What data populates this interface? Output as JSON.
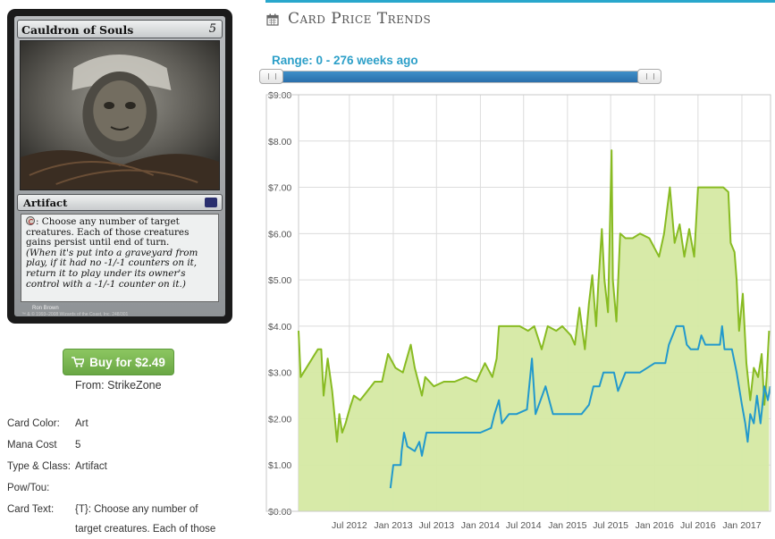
{
  "card": {
    "name": "Cauldron of Souls",
    "cost": "5",
    "type_line": "Artifact",
    "ability_text": ": Choose any number of target creatures. Each of those creatures gains persist until end of turn.",
    "reminder_text": "(When it's put into a graveyard from play, if it had no -1/-1 counters on it, return it to play under its owner's control with a -1/-1 counter on it.)",
    "artist": "Ron Brown",
    "copyright": "™ & © 1993–2008 Wizards of the Coast, Inc. 248/301"
  },
  "buy": {
    "label": "Buy for $2.49",
    "source": "From: StrikeZone",
    "icon": "shopping-cart-icon",
    "color": "#7ab854"
  },
  "attributes": [
    {
      "label": "Card Color:",
      "value": "Art"
    },
    {
      "label": "Mana Cost",
      "value": "5"
    },
    {
      "label": "Type & Class:",
      "value": "Artifact"
    },
    {
      "label": "Pow/Tou:",
      "value": ""
    },
    {
      "label": "Card Text:",
      "value": "{T}: Choose any number of"
    },
    {
      "label": "",
      "value": "target creatures. Each of those"
    }
  ],
  "section": {
    "title": "Card Price Trends",
    "icon": "calendar-icon",
    "accent": "#29a7cc"
  },
  "range": {
    "label": "Range: 0 - 276 weeks ago",
    "min": 0,
    "max": 276
  },
  "chart_data": {
    "type": "line",
    "title": "",
    "xlabel": "",
    "ylabel": "",
    "ylim": [
      0,
      9
    ],
    "grid": true,
    "y_ticks": [
      "$0.00",
      "$1.00",
      "$2.00",
      "$3.00",
      "$4.00",
      "$5.00",
      "$6.00",
      "$7.00",
      "$8.00",
      "$9.00"
    ],
    "x_ticks": [
      "Jul 2012",
      "Jan 2013",
      "Jul 2013",
      "Jan 2014",
      "Jul 2014",
      "Jan 2015",
      "Jul 2015",
      "Jan 2016",
      "Jul 2016",
      "Jan 2017"
    ],
    "x_range": [
      "2011-12-01",
      "2017-05-01"
    ],
    "series": [
      {
        "color": "#88bb22",
        "fill": "#d5e9a3",
        "points": [
          [
            "2011-12-01",
            3.9
          ],
          [
            "2011-12-10",
            2.9
          ],
          [
            "2012-01-15",
            3.2
          ],
          [
            "2012-02-20",
            3.5
          ],
          [
            "2012-03-05",
            3.5
          ],
          [
            "2012-03-15",
            2.5
          ],
          [
            "2012-04-01",
            3.3
          ],
          [
            "2012-04-20",
            2.6
          ],
          [
            "2012-05-01",
            2.0
          ],
          [
            "2012-05-10",
            1.5
          ],
          [
            "2012-05-20",
            2.1
          ],
          [
            "2012-06-01",
            1.7
          ],
          [
            "2012-06-15",
            1.9
          ],
          [
            "2012-07-01",
            2.2
          ],
          [
            "2012-07-20",
            2.5
          ],
          [
            "2012-08-15",
            2.4
          ],
          [
            "2012-09-15",
            2.6
          ],
          [
            "2012-10-15",
            2.8
          ],
          [
            "2012-11-15",
            2.8
          ],
          [
            "2012-12-10",
            3.4
          ],
          [
            "2013-01-10",
            3.1
          ],
          [
            "2013-02-10",
            3.0
          ],
          [
            "2013-03-15",
            3.6
          ],
          [
            "2013-04-01",
            3.1
          ],
          [
            "2013-05-01",
            2.5
          ],
          [
            "2013-05-15",
            2.9
          ],
          [
            "2013-06-20",
            2.7
          ],
          [
            "2013-08-01",
            2.8
          ],
          [
            "2013-09-15",
            2.8
          ],
          [
            "2013-11-01",
            2.9
          ],
          [
            "2013-12-15",
            2.8
          ],
          [
            "2014-01-20",
            3.2
          ],
          [
            "2014-02-20",
            2.9
          ],
          [
            "2014-03-10",
            3.3
          ],
          [
            "2014-03-20",
            4.0
          ],
          [
            "2014-05-01",
            4.0
          ],
          [
            "2014-06-15",
            4.0
          ],
          [
            "2014-07-20",
            3.9
          ],
          [
            "2014-08-15",
            4.0
          ],
          [
            "2014-09-15",
            3.5
          ],
          [
            "2014-10-10",
            4.0
          ],
          [
            "2014-11-15",
            3.9
          ],
          [
            "2014-12-10",
            4.0
          ],
          [
            "2015-01-15",
            3.8
          ],
          [
            "2015-02-01",
            3.6
          ],
          [
            "2015-02-20",
            4.4
          ],
          [
            "2015-03-15",
            3.5
          ],
          [
            "2015-04-01",
            4.5
          ],
          [
            "2015-04-15",
            5.1
          ],
          [
            "2015-05-01",
            4.0
          ],
          [
            "2015-05-10",
            4.9
          ],
          [
            "2015-05-25",
            6.1
          ],
          [
            "2015-06-05",
            5.0
          ],
          [
            "2015-06-20",
            4.3
          ],
          [
            "2015-07-05",
            7.8
          ],
          [
            "2015-07-10",
            5.0
          ],
          [
            "2015-07-25",
            4.1
          ],
          [
            "2015-08-10",
            6.0
          ],
          [
            "2015-09-01",
            5.9
          ],
          [
            "2015-10-01",
            5.9
          ],
          [
            "2015-11-01",
            6.0
          ],
          [
            "2015-12-10",
            5.9
          ],
          [
            "2016-01-20",
            5.5
          ],
          [
            "2016-02-10",
            6.0
          ],
          [
            "2016-03-05",
            7.0
          ],
          [
            "2016-03-25",
            5.8
          ],
          [
            "2016-04-15",
            6.2
          ],
          [
            "2016-05-05",
            5.5
          ],
          [
            "2016-05-25",
            6.1
          ],
          [
            "2016-06-15",
            5.5
          ],
          [
            "2016-07-01",
            7.0
          ],
          [
            "2016-08-01",
            7.0
          ],
          [
            "2016-09-01",
            7.0
          ],
          [
            "2016-10-15",
            7.0
          ],
          [
            "2016-11-05",
            6.9
          ],
          [
            "2016-11-15",
            5.8
          ],
          [
            "2016-12-01",
            5.6
          ],
          [
            "2016-12-10",
            5.0
          ],
          [
            "2016-12-20",
            3.9
          ],
          [
            "2017-01-05",
            4.7
          ],
          [
            "2017-01-20",
            3.2
          ],
          [
            "2017-02-05",
            2.4
          ],
          [
            "2017-02-20",
            3.1
          ],
          [
            "2017-03-10",
            2.9
          ],
          [
            "2017-03-25",
            3.4
          ],
          [
            "2017-04-05",
            2.3
          ],
          [
            "2017-04-15",
            2.9
          ],
          [
            "2017-04-25",
            3.9
          ]
        ]
      },
      {
        "color": "#2299cc",
        "points": [
          [
            "2012-12-20",
            0.5
          ],
          [
            "2013-01-01",
            1.0
          ],
          [
            "2013-02-01",
            1.0
          ],
          [
            "2013-02-05",
            1.3
          ],
          [
            "2013-02-15",
            1.7
          ],
          [
            "2013-03-01",
            1.4
          ],
          [
            "2013-04-01",
            1.3
          ],
          [
            "2013-04-20",
            1.5
          ],
          [
            "2013-05-01",
            1.2
          ],
          [
            "2013-05-20",
            1.7
          ],
          [
            "2013-07-01",
            1.7
          ],
          [
            "2013-10-01",
            1.7
          ],
          [
            "2014-01-01",
            1.7
          ],
          [
            "2014-02-15",
            1.8
          ],
          [
            "2014-03-01",
            2.1
          ],
          [
            "2014-03-20",
            2.4
          ],
          [
            "2014-04-01",
            1.9
          ],
          [
            "2014-05-01",
            2.1
          ],
          [
            "2014-06-01",
            2.1
          ],
          [
            "2014-07-15",
            2.2
          ],
          [
            "2014-08-05",
            3.3
          ],
          [
            "2014-08-20",
            2.1
          ],
          [
            "2014-10-01",
            2.7
          ],
          [
            "2014-11-01",
            2.1
          ],
          [
            "2015-01-01",
            2.1
          ],
          [
            "2015-03-01",
            2.1
          ],
          [
            "2015-04-01",
            2.3
          ],
          [
            "2015-04-20",
            2.7
          ],
          [
            "2015-05-15",
            2.7
          ],
          [
            "2015-06-01",
            3.0
          ],
          [
            "2015-07-15",
            3.0
          ],
          [
            "2015-08-01",
            2.6
          ],
          [
            "2015-09-01",
            3.0
          ],
          [
            "2015-10-01",
            3.0
          ],
          [
            "2015-11-01",
            3.0
          ],
          [
            "2016-01-01",
            3.2
          ],
          [
            "2016-02-15",
            3.2
          ],
          [
            "2016-03-01",
            3.6
          ],
          [
            "2016-04-01",
            4.0
          ],
          [
            "2016-05-01",
            4.0
          ],
          [
            "2016-05-15",
            3.6
          ],
          [
            "2016-06-01",
            3.5
          ],
          [
            "2016-07-01",
            3.5
          ],
          [
            "2016-07-15",
            3.8
          ],
          [
            "2016-08-01",
            3.6
          ],
          [
            "2016-09-01",
            3.6
          ],
          [
            "2016-10-01",
            3.6
          ],
          [
            "2016-10-10",
            4.0
          ],
          [
            "2016-10-20",
            3.5
          ],
          [
            "2016-11-20",
            3.5
          ],
          [
            "2016-12-10",
            3.0
          ],
          [
            "2017-01-01",
            2.3
          ],
          [
            "2017-01-15",
            1.9
          ],
          [
            "2017-01-25",
            1.5
          ],
          [
            "2017-02-05",
            2.1
          ],
          [
            "2017-02-20",
            1.9
          ],
          [
            "2017-03-05",
            2.5
          ],
          [
            "2017-03-20",
            1.9
          ],
          [
            "2017-04-05",
            2.7
          ],
          [
            "2017-04-20",
            2.4
          ],
          [
            "2017-04-30",
            2.7
          ]
        ]
      }
    ]
  }
}
